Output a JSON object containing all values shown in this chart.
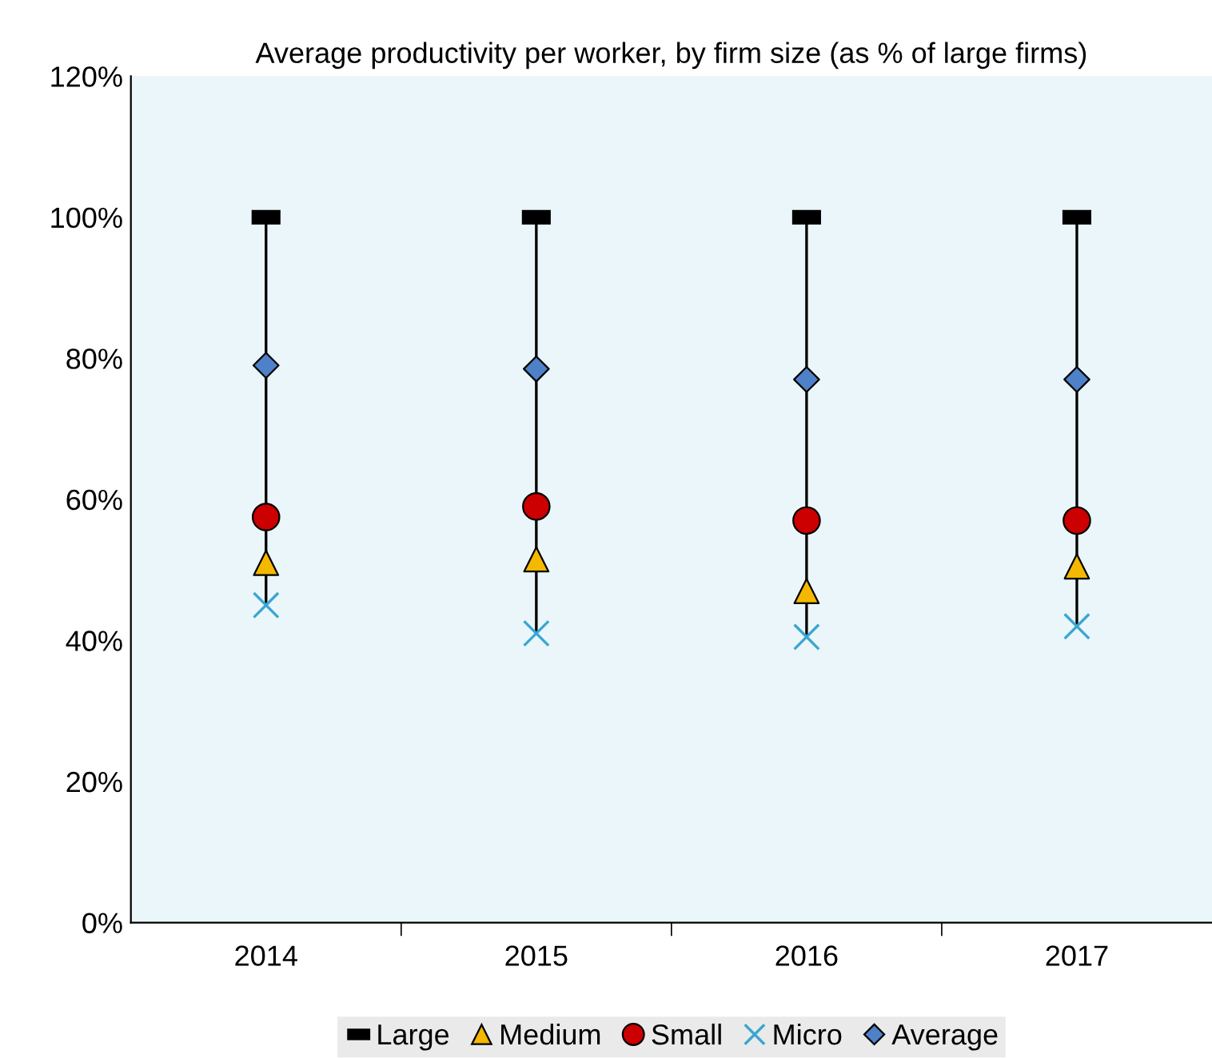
{
  "chart_data": {
    "type": "scatter",
    "title": "Average productivity per worker, by firm size (as % of large firms)",
    "categories": [
      "2014",
      "2015",
      "2016",
      "2017"
    ],
    "series": [
      {
        "name": "Large",
        "color": "#000000",
        "marker": "square",
        "values": [
          100,
          100,
          100,
          100
        ]
      },
      {
        "name": "Medium",
        "color": "#f5b800",
        "marker": "triangle",
        "values": [
          51,
          51.5,
          47,
          50.5
        ]
      },
      {
        "name": "Small",
        "color": "#cc0000",
        "marker": "circle",
        "values": [
          57.5,
          59,
          57,
          57
        ]
      },
      {
        "name": "Micro",
        "color": "#3aa6d0",
        "marker": "cross",
        "values": [
          45,
          41,
          40.5,
          42
        ]
      },
      {
        "name": "Average",
        "color": "#4f81c8",
        "marker": "diamond",
        "values": [
          79,
          78.5,
          77,
          77
        ]
      }
    ],
    "ylim": [
      0,
      120
    ],
    "yticks": [
      {
        "value": 0,
        "label": "0%"
      },
      {
        "value": 20,
        "label": "20%"
      },
      {
        "value": 40,
        "label": "40%"
      },
      {
        "value": 60,
        "label": "60%"
      },
      {
        "value": 80,
        "label": "80%"
      },
      {
        "value": 100,
        "label": "100%"
      },
      {
        "value": 120,
        "label": "120%"
      }
    ],
    "grid": false,
    "legend": "bottom"
  }
}
